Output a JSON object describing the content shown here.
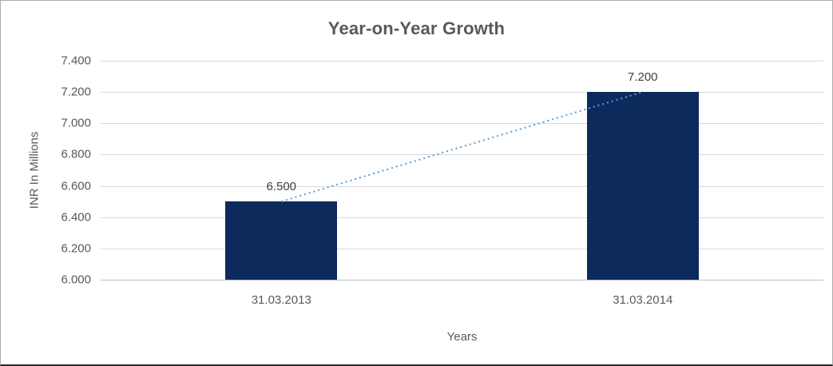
{
  "chart_data": {
    "type": "bar",
    "title": "Year-on-Year Growth",
    "xlabel": "Years",
    "ylabel": "INR In Millions",
    "categories": [
      "31.03.2013",
      "31.03.2014"
    ],
    "values": [
      6.5,
      7.2
    ],
    "value_labels": [
      "6.500",
      "7.200"
    ],
    "ylim": [
      6.0,
      7.4
    ],
    "ytick_step": 0.2,
    "ytick_labels": [
      "6.000",
      "6.200",
      "6.400",
      "6.600",
      "6.800",
      "7.000",
      "7.200",
      "7.400"
    ],
    "grid": true,
    "legend_position": "none",
    "bar_color": "#0d2a5c",
    "trendline": {
      "style": "dotted",
      "color": "#5b9bd5",
      "from_point": [
        0,
        6.5
      ],
      "to_point": [
        1,
        7.2
      ]
    },
    "gridline_color": "#d9d9d9",
    "text_color": "#595959"
  }
}
